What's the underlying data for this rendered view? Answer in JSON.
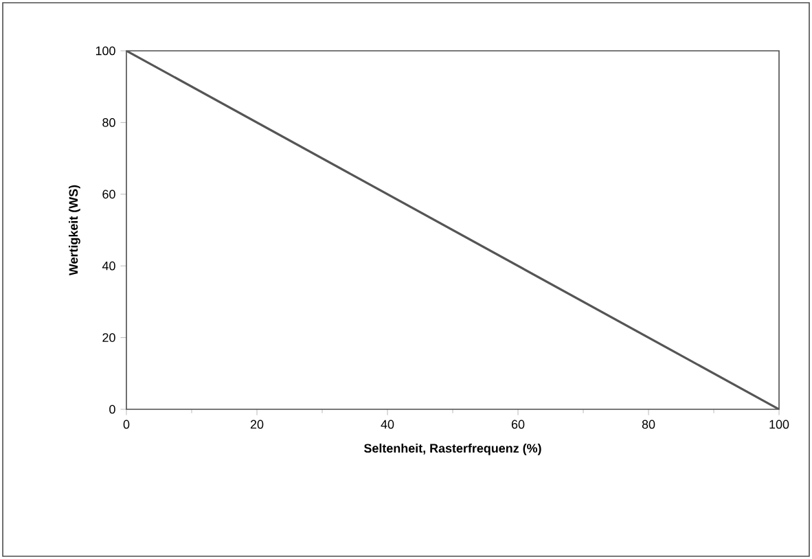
{
  "chart_data": {
    "type": "line",
    "xlabel": "Seltenheit, Rasterfrequenz (%)",
    "ylabel": "Wertigkeit (WS)",
    "x": [
      0,
      100
    ],
    "series": [
      {
        "color": "#555555",
        "values": [
          100,
          0
        ]
      }
    ],
    "xlim": [
      0,
      100
    ],
    "ylim": [
      0,
      100
    ],
    "xticks": [
      0,
      20,
      40,
      60,
      80,
      100
    ],
    "yticks": [
      0,
      20,
      40,
      60,
      80,
      100
    ],
    "marker": "none",
    "line_style": "solid"
  }
}
